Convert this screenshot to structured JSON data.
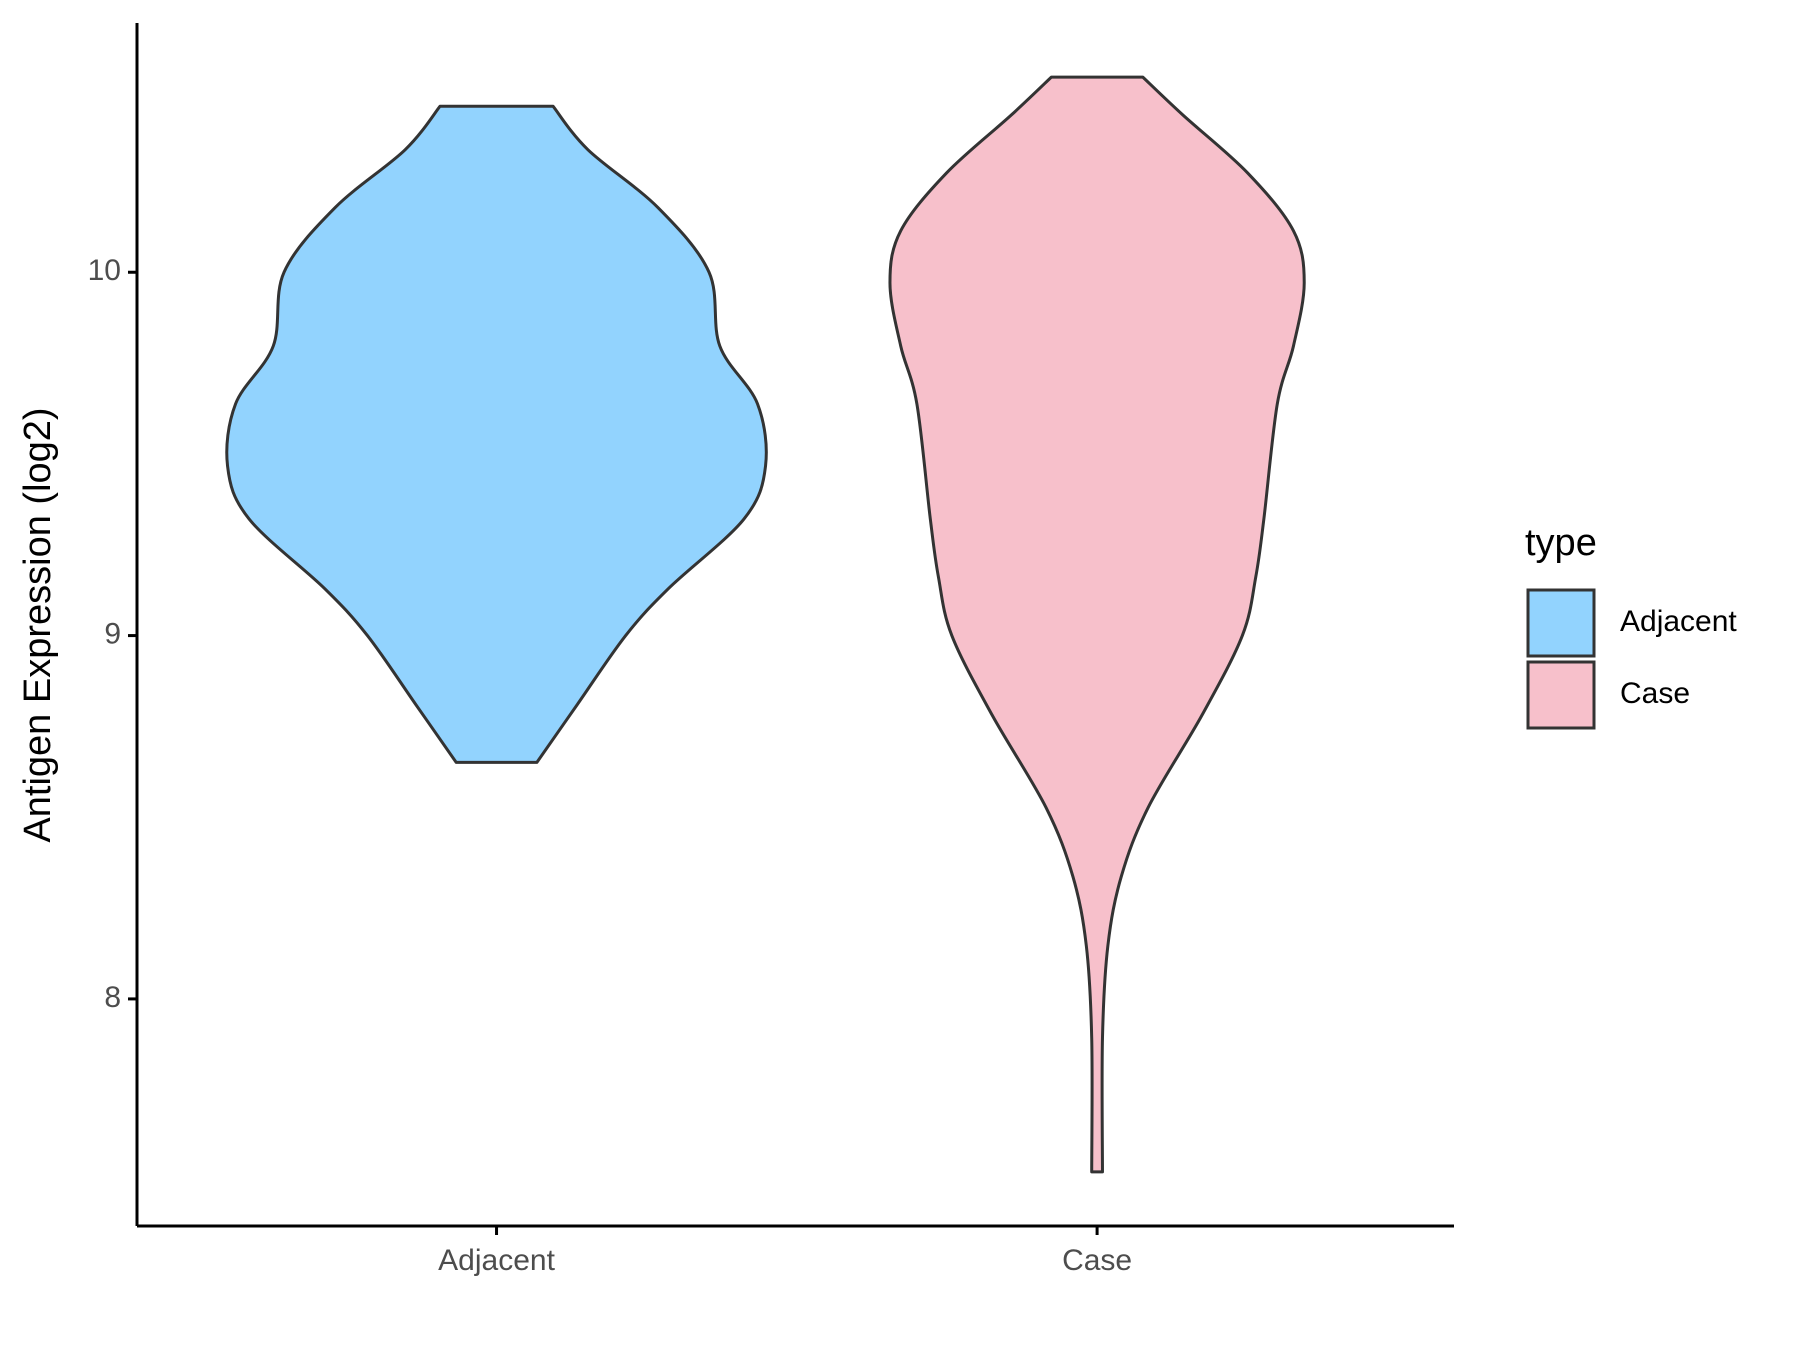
{
  "chart_data": {
    "type": "violin",
    "y_label": "Antigen Expression (log2)",
    "categories": [
      "Adjacent",
      "Case"
    ],
    "legend_title": "type",
    "series": [
      {
        "name": "Adjacent",
        "color": "#92d3fe",
        "y": [
          10.457,
          10.337,
          10.178,
          10.0,
          9.797,
          9.638,
          9.467,
          9.321,
          9.13,
          9.0,
          8.81,
          8.651
        ],
        "density": [
          0.21,
          0.34,
          0.6,
          0.79,
          0.83,
          0.97,
          1.0,
          0.92,
          0.64,
          0.48,
          0.3,
          0.15
        ]
      },
      {
        "name": "Case",
        "color": "#f7c0cb",
        "y": [
          10.537,
          10.432,
          10.273,
          10.114,
          9.971,
          9.797,
          9.638,
          9.321,
          9.162,
          9.0,
          8.781,
          8.527,
          8.337,
          8.146,
          7.892,
          7.524
        ],
        "density": [
          0.17,
          0.32,
          0.56,
          0.73,
          0.77,
          0.73,
          0.67,
          0.62,
          0.59,
          0.54,
          0.39,
          0.19,
          0.09,
          0.04,
          0.02,
          0.02
        ]
      }
    ],
    "ylim": [
      7.375,
      10.686
    ],
    "yticks": [
      8,
      9,
      10
    ],
    "legend": "right",
    "outline_color": "#333333"
  }
}
